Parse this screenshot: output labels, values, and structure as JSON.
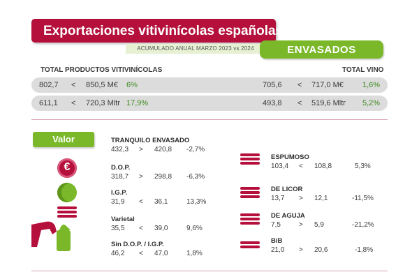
{
  "header": {
    "title": "Exportaciones vitivinícolas españolas",
    "subtitle": "ACUMULADO ANUAL MARZO 2023 vs 2024",
    "badge": "ENVASADOS"
  },
  "totals": {
    "left_label": "TOTAL PRODUCTOS VITIVINÍCOLAS",
    "right_label": "TOTAL VINO",
    "rows": [
      {
        "left": {
          "prev": "802,7",
          "sym": "<",
          "curr": "850,5 M€",
          "pct": "6%"
        },
        "right": {
          "prev": "705,6",
          "sym": "<",
          "curr": "717,0 M€",
          "pct": "1,6%"
        }
      },
      {
        "left": {
          "prev": "611,1",
          "sym": "<",
          "curr": "720,3 Mltr",
          "pct": "17,9%"
        },
        "right": {
          "prev": "493,8",
          "sym": "<",
          "curr": "519,6 Mltr",
          "pct": "5,2%"
        }
      }
    ]
  },
  "valor_label": "Valor",
  "icons": {
    "euro": "€",
    "colors": {
      "primary": "#b5103c",
      "accent": "#7ab829",
      "gray": "#dcdcdc"
    }
  },
  "products_left": [
    {
      "name": "TRANQUILO ENVASADO",
      "prev": "432,3",
      "sym": ">",
      "curr": "420,8",
      "pct": "-2,7%",
      "trend": "down"
    },
    {
      "name": "D.O.P.",
      "prev": "318,7",
      "sym": ">",
      "curr": "298,8",
      "pct": "-6,3%",
      "trend": "down"
    },
    {
      "name": "I.G.P.",
      "prev": "31,9",
      "sym": "<",
      "curr": "36,1",
      "pct": "13,3%",
      "trend": "up"
    },
    {
      "name": "Varietal",
      "prev": "35,5",
      "sym": "<",
      "curr": "39,0",
      "pct": "9,6%",
      "trend": "up"
    },
    {
      "name": "Sin D.O.P. / I.G.P.",
      "prev": "46,2",
      "sym": "<",
      "curr": "47,0",
      "pct": "1,8%",
      "trend": "up"
    }
  ],
  "products_right": [
    {
      "name": "ESPUMOSO",
      "prev": "103,4",
      "sym": "<",
      "curr": "108,8",
      "pct": "5,3%",
      "trend": "up"
    },
    {
      "name": "DE LICOR",
      "prev": "13,7",
      "sym": ">",
      "curr": "12,1",
      "pct": "-11,5%",
      "trend": "down"
    },
    {
      "name": "DE AGUJA",
      "prev": "7,5",
      "sym": ">",
      "curr": "5,9",
      "pct": "-21,2%",
      "trend": "down"
    },
    {
      "name": "BiB",
      "prev": "21,0",
      "sym": ">",
      "curr": "20,6",
      "pct": "-1,8%",
      "trend": "down"
    }
  ]
}
